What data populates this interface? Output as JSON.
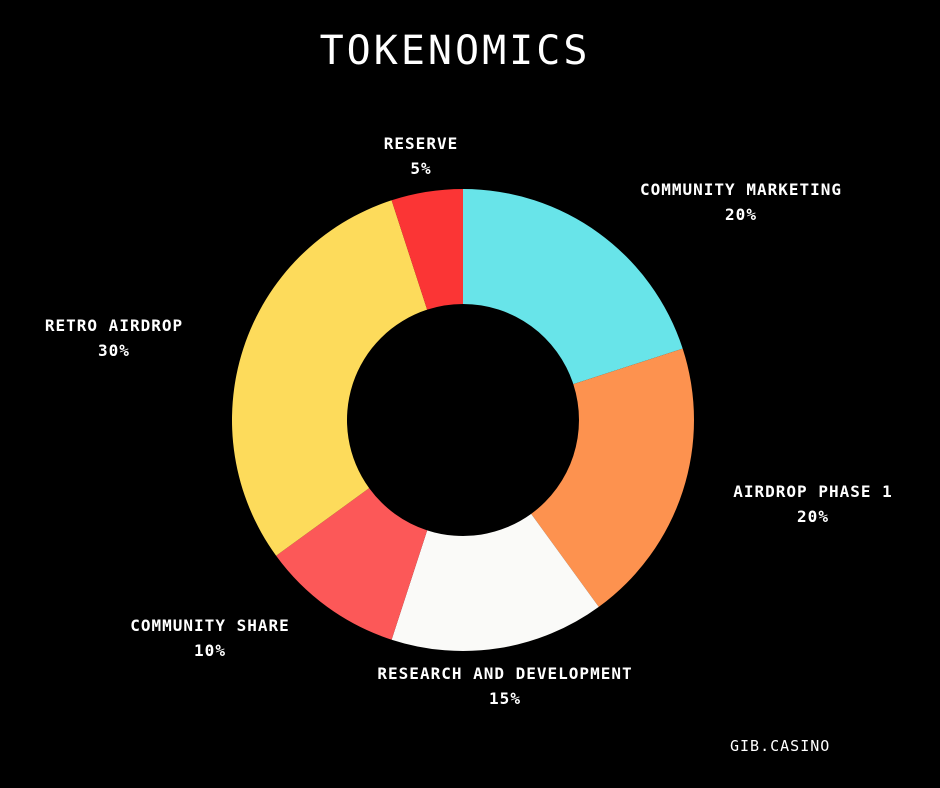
{
  "chart_data": {
    "type": "pie",
    "donut": true,
    "title": "TOKENOMICS",
    "categories": [
      "COMMUNITY MARKETING",
      "AIRDROP PHASE 1",
      "RESEARCH AND DEVELOPMENT",
      "COMMUNITY SHARE",
      "RETRO AIRDROP",
      "RESERVE"
    ],
    "values": [
      20,
      20,
      15,
      10,
      30,
      5
    ],
    "value_labels": [
      "20%",
      "20%",
      "15%",
      "10%",
      "30%",
      "5%"
    ],
    "colors": [
      "#68e4e9",
      "#fd924f",
      "#fafaf8",
      "#fc5858",
      "#fddb5b",
      "#fb3535"
    ],
    "legend": "none"
  },
  "footer": {
    "brand": "GIB.CASINO"
  }
}
